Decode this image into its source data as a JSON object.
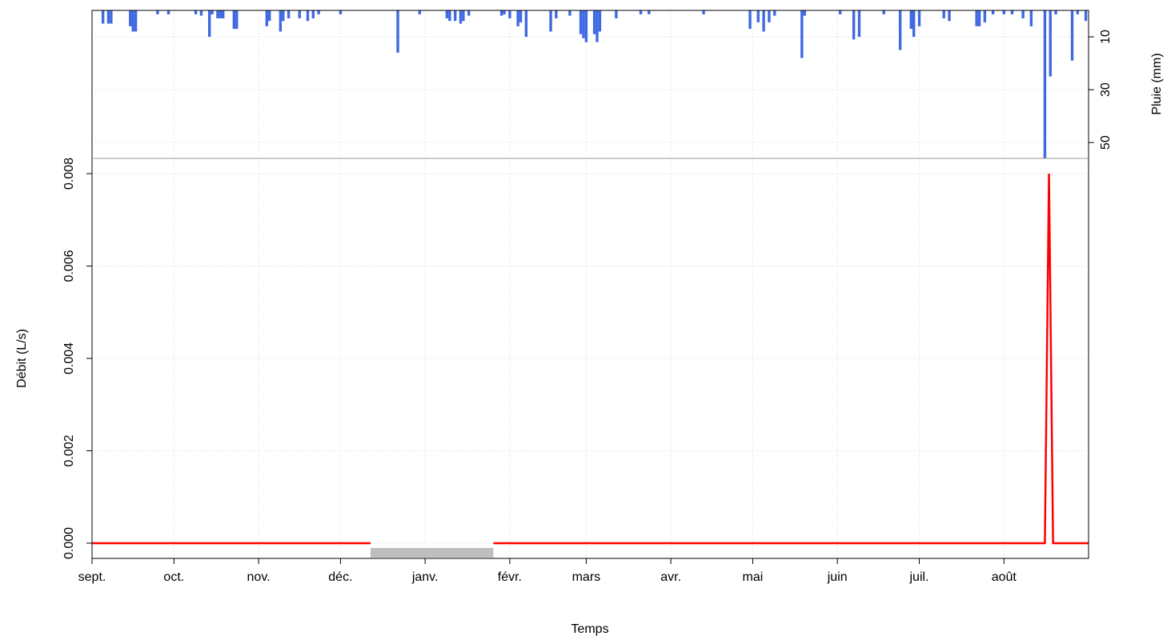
{
  "chart_data": {
    "type": "line",
    "ylabel": "Débit (L/s)",
    "y2label": "Pluie (mm)",
    "xlabel": "Temps",
    "xlim": [
      0,
      365
    ],
    "xticks": [
      {
        "value": 0,
        "label": "sept."
      },
      {
        "value": 30,
        "label": "oct."
      },
      {
        "value": 61,
        "label": "nov."
      },
      {
        "value": 91,
        "label": "déc."
      },
      {
        "value": 122,
        "label": "janv."
      },
      {
        "value": 153,
        "label": "févr."
      },
      {
        "value": 181,
        "label": "mars"
      },
      {
        "value": 212,
        "label": "avr."
      },
      {
        "value": 242,
        "label": "mai"
      },
      {
        "value": 273,
        "label": "juin"
      },
      {
        "value": 303,
        "label": "juil."
      },
      {
        "value": 334,
        "label": "août"
      }
    ],
    "ylim": [
      -0.00033,
      0.00833
    ],
    "yticks": [
      {
        "value": 0,
        "label": "0.000"
      },
      {
        "value": 0.002,
        "label": "0.002"
      },
      {
        "value": 0.004,
        "label": "0.004"
      },
      {
        "value": 0.006,
        "label": "0.006"
      },
      {
        "value": 0.008,
        "label": "0.008"
      }
    ],
    "y2lim": [
      0,
      56
    ],
    "y2ticks": [
      10,
      30,
      50
    ],
    "grid": true,
    "flow": {
      "color": "#ff0000",
      "x": [
        0,
        102,
        125,
        147,
        349,
        350.5,
        352,
        365
      ],
      "values": [
        0,
        0,
        null,
        0,
        0,
        0.008,
        0,
        0
      ]
    },
    "missing": {
      "color": "#bebebe",
      "x": [
        102,
        147
      ]
    },
    "rain": {
      "color": "#4169e1",
      "axis": "y2",
      "x": [
        4,
        6,
        7,
        14,
        15,
        16,
        24,
        28,
        38,
        40,
        43,
        44,
        46,
        47,
        48,
        52,
        53,
        64,
        65,
        69,
        70,
        72,
        76,
        79,
        81,
        83,
        91,
        112,
        120,
        130,
        131,
        133,
        135,
        136,
        138,
        150,
        151,
        153,
        156,
        157,
        159,
        168,
        170,
        175,
        179,
        180,
        181,
        184,
        185,
        186,
        192,
        201,
        204,
        224,
        241,
        244,
        246,
        248,
        250,
        260,
        261,
        274,
        279,
        281,
        290,
        296,
        300,
        301,
        303,
        312,
        314,
        324,
        325,
        327,
        330,
        334,
        337,
        341,
        344,
        349,
        351,
        353,
        359,
        361,
        364
      ],
      "values": [
        5,
        5,
        5,
        6,
        8,
        8,
        1.5,
        1.5,
        1.5,
        2,
        10,
        1.5,
        3,
        3,
        3,
        7,
        7,
        6,
        4,
        8,
        4,
        3,
        3,
        4,
        3,
        1.5,
        1.5,
        16,
        1.5,
        3,
        4,
        4,
        5,
        4,
        2,
        2,
        1.5,
        3,
        6,
        4.5,
        10,
        8,
        3,
        2,
        9,
        10.5,
        12,
        9,
        12,
        8,
        3,
        1.5,
        1.5,
        1.5,
        7,
        4.5,
        8,
        4.5,
        2,
        18,
        2,
        1.5,
        11,
        10,
        1.5,
        15,
        7,
        10,
        6,
        3,
        4,
        6,
        6,
        4.5,
        1.5,
        1.5,
        1.5,
        3,
        6,
        56,
        25,
        1.5,
        19,
        1.5,
        4
      ]
    }
  }
}
